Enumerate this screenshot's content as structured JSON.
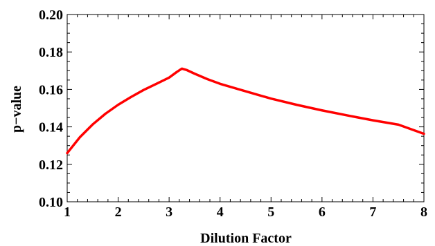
{
  "chart_data": {
    "type": "line",
    "title": "",
    "xlabel": "Dilution Factor",
    "ylabel": "p−value",
    "xlim": [
      1,
      8
    ],
    "ylim": [
      0.1,
      0.2
    ],
    "x_ticks": [
      1,
      2,
      3,
      4,
      5,
      6,
      7,
      8
    ],
    "x_tick_labels": [
      "1",
      "2",
      "3",
      "4",
      "5",
      "6",
      "7",
      "8"
    ],
    "y_ticks": [
      0.1,
      0.12,
      0.14,
      0.16,
      0.18,
      0.2
    ],
    "y_tick_labels": [
      "0.10",
      "0.12",
      "0.14",
      "0.16",
      "0.18",
      "0.20"
    ],
    "grid": false,
    "series": [
      {
        "color": "#ff0000",
        "x": [
          1.0,
          1.25,
          1.5,
          1.75,
          2.0,
          2.25,
          2.5,
          2.75,
          3.0,
          3.15,
          3.25,
          3.35,
          3.5,
          3.75,
          4.0,
          4.5,
          5.0,
          5.5,
          6.0,
          6.5,
          7.0,
          7.5,
          8.0
        ],
        "y": [
          0.126,
          0.1345,
          0.1413,
          0.147,
          0.1518,
          0.1559,
          0.1597,
          0.163,
          0.1663,
          0.1693,
          0.1711,
          0.1703,
          0.1684,
          0.1655,
          0.163,
          0.159,
          0.1551,
          0.1518,
          0.1488,
          0.1461,
          0.1435,
          0.1412,
          0.1363
        ]
      }
    ]
  }
}
